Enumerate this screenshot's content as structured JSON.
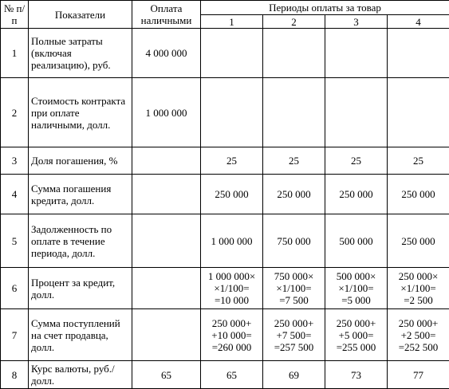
{
  "header": {
    "number": "№ п/п",
    "indicator": "Показатели",
    "cash": "Оплата наличными",
    "periods": "Периоды оплаты за товар",
    "period_numbers": [
      "1",
      "2",
      "3",
      "4"
    ]
  },
  "table": {
    "rows": [
      [
        "1",
        "Полные затраты (включая реализацию), руб.",
        "4 000 000",
        null,
        null,
        null,
        null
      ],
      [
        "2",
        "Стоимость контракта при оплате наличными, долл.",
        "1 000 000",
        null,
        null,
        null,
        null
      ],
      [
        "3",
        "Доля погашения, %",
        null,
        "25",
        "25",
        "25",
        "25"
      ],
      [
        "4",
        "Сумма погашения кредита, долл.",
        null,
        "250 000",
        "250 000",
        "250 000",
        "250 000"
      ],
      [
        "5",
        "Задолженность по оплате в течение периода, долл.",
        null,
        "1 000 000",
        "750 000",
        "500 000",
        "250 000"
      ],
      [
        "6",
        "Процент за кредит, долл.",
        null,
        "1 000 000×\n×1/100=\n=10 000",
        "750 000×\n×1/100=\n=7 500",
        "500 000×\n×1/100=\n=5 000",
        "250 000×\n×1/100=\n=2 500"
      ],
      [
        "7",
        "Сумма поступлений на счет продавца, долл.",
        null,
        "250 000+\n+10 000=\n=260 000",
        "250 000+\n+7 500=\n=257 500",
        "250 000+\n+5 000=\n=255 000",
        "250 000+\n+2 500=\n=252 500"
      ],
      [
        "8",
        "Курс валюты, руб./ долл.",
        "65",
        "65",
        "69",
        "73",
        "77"
      ]
    ]
  }
}
